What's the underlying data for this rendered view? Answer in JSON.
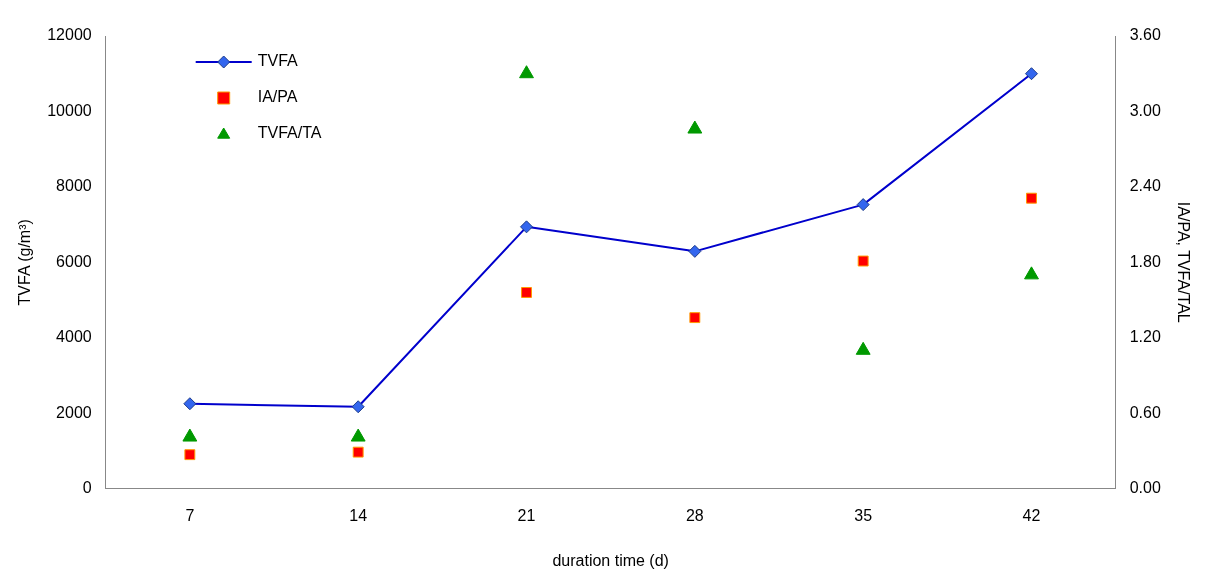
{
  "chart_data": {
    "type": "line",
    "xlabel": "duration time (d)",
    "ylabel": "TVFA (g/m³)",
    "y2label": "IA/PA, TVFA/TAL",
    "categories": [
      "7",
      "14",
      "21",
      "28",
      "35",
      "42"
    ],
    "series": [
      {
        "name": "TVFA",
        "marker": "diamond",
        "color": "#0000cc",
        "values": [
          2250,
          2170,
          6940,
          6290,
          7530,
          11000
        ]
      },
      {
        "name": "IA/PA",
        "type": "scatter",
        "marker": "square",
        "axis": "y2",
        "color": "#ff0000",
        "values": [
          0.27,
          0.29,
          1.56,
          1.36,
          1.81,
          2.31
        ]
      },
      {
        "name": "TVFA/TA",
        "type": "scatter",
        "marker": "triangle",
        "axis": "y2",
        "color": "#009900",
        "values": [
          0.41,
          0.41,
          3.3,
          2.86,
          1.1,
          1.7
        ]
      }
    ],
    "ylim": [
      0,
      12000
    ],
    "yticks": [
      0,
      2000,
      4000,
      6000,
      8000,
      10000,
      12000
    ],
    "y2lim": [
      0,
      3.6
    ],
    "y2ticks": [
      {
        "value": 0,
        "label": "0.00"
      },
      {
        "value": 0.6,
        "label": "0.60"
      },
      {
        "value": 1.2,
        "label": "1.20"
      },
      {
        "value": 1.8,
        "label": "1.80"
      },
      {
        "value": 2.4,
        "label": "2.40"
      },
      {
        "value": 3.0,
        "label": "3.00"
      },
      {
        "value": 3.6,
        "label": "3.60"
      }
    ],
    "grid": false,
    "legend": "top left"
  }
}
